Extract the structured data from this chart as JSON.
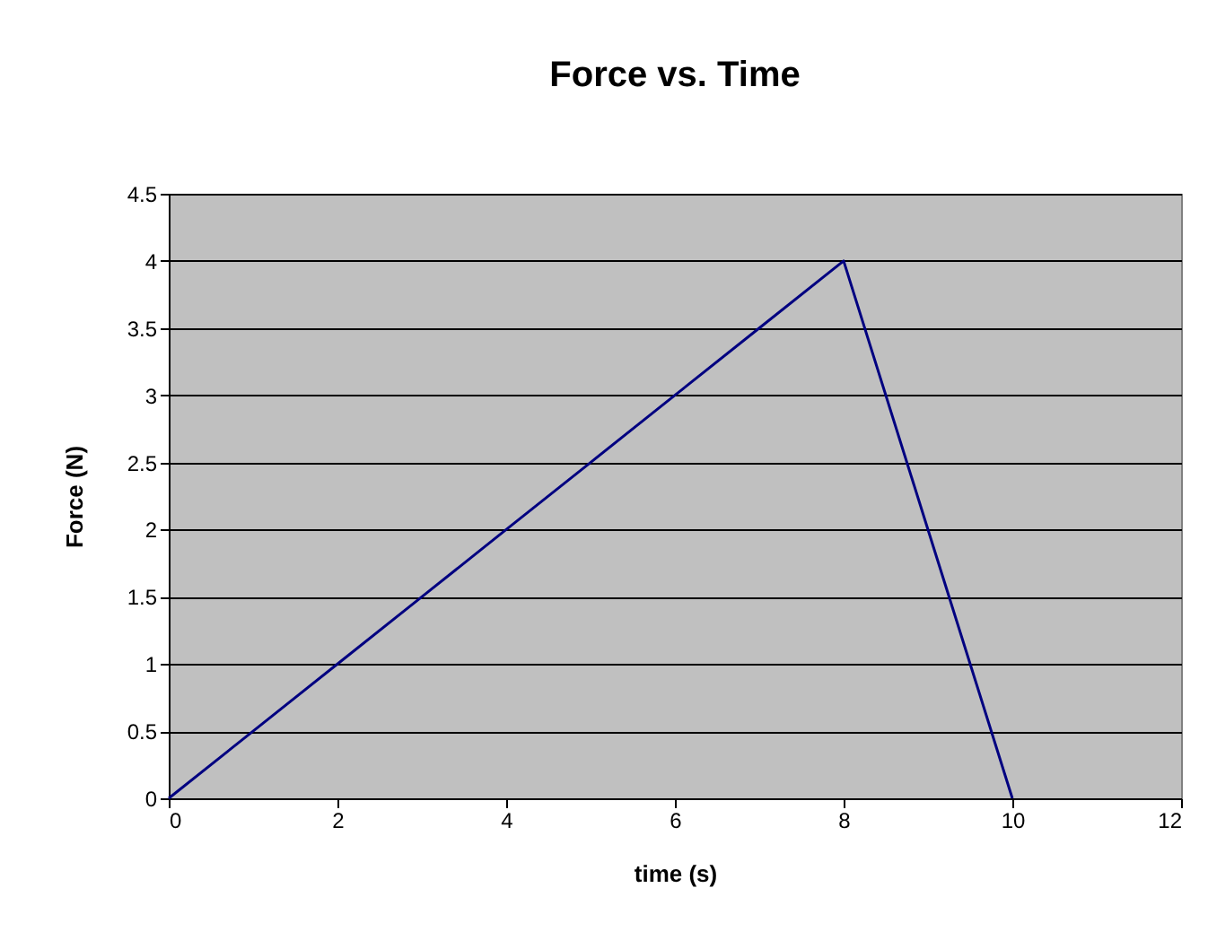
{
  "chart_data": {
    "type": "line",
    "title": "Force vs. Time",
    "xlabel": "time (s)",
    "ylabel": "Force (N)",
    "x": [
      0,
      1,
      2,
      3,
      4,
      5,
      6,
      7,
      8,
      9,
      10
    ],
    "series": [
      {
        "color": "#000080",
        "values": [
          0,
          0.5,
          1,
          1.5,
          2,
          2.5,
          3,
          3.5,
          4,
          2,
          0
        ]
      }
    ],
    "xlim": [
      0,
      12
    ],
    "xticks": [
      0,
      2,
      4,
      6,
      8,
      10,
      12
    ],
    "ylim": [
      0,
      4.5
    ],
    "yticks": [
      0,
      0.5,
      1,
      1.5,
      2,
      2.5,
      3,
      3.5,
      4,
      4.5
    ],
    "grid": "y",
    "legend": false,
    "marker": "none",
    "line_style": "solid"
  }
}
